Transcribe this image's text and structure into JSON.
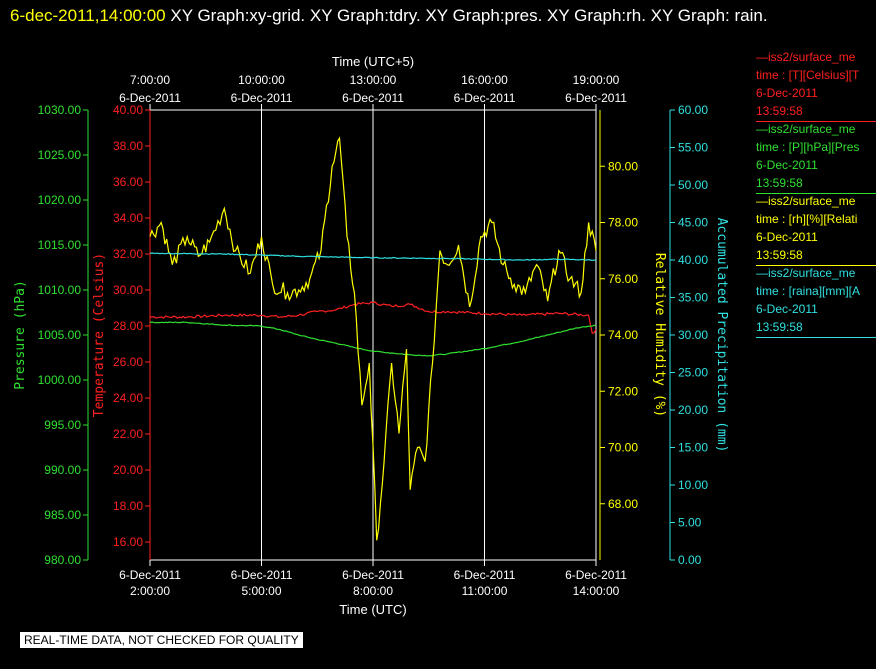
{
  "header": {
    "timestamp": "6-dec-2011,14:00:00",
    "title_rest": " XY Graph:xy-grid.  XY Graph:tdry.  XY Graph:pres.  XY Graph:rh.  XY Graph: rain."
  },
  "footer_note": "REAL-TIME DATA, NOT CHECKED FOR QUALITY",
  "legend": [
    {
      "line1": "—iss2/surface_me",
      "line2": "time : [T][Celsius][T",
      "line3": "6-Dec-2011",
      "line4": "13:59:58",
      "color": "#ff2020"
    },
    {
      "line1": "—iss2/surface_me",
      "line2": "time : [P][hPa][Pres",
      "line3": "6-Dec-2011",
      "line4": "13:59:58",
      "color": "#30e030"
    },
    {
      "line1": "—iss2/surface_me",
      "line2": "time : [rh][%][Relati",
      "line3": "6-Dec-2011",
      "line4": "13:59:58",
      "color": "#ffff00"
    },
    {
      "line1": "—iss2/surface_me",
      "line2": "time : [raina][mm][A",
      "line3": "6-Dec-2011",
      "line4": "13:59:58",
      "color": "#30e0e0"
    }
  ],
  "chart_data": {
    "type": "line",
    "x_bottom_label": "Time (UTC)",
    "x_top_label": "Time (UTC+5)",
    "x_range": [
      "2:00:00",
      "14:00:00"
    ],
    "x_bottom_ticks": [
      {
        "date": "6-Dec-2011",
        "time": "2:00:00"
      },
      {
        "date": "6-Dec-2011",
        "time": "5:00:00"
      },
      {
        "date": "6-Dec-2011",
        "time": "8:00:00"
      },
      {
        "date": "6-Dec-2011",
        "time": "11:00:00"
      },
      {
        "date": "6-Dec-2011",
        "time": "14:00:00"
      }
    ],
    "x_top_ticks": [
      {
        "date": "6-Dec-2011",
        "time": "7:00:00"
      },
      {
        "date": "6-Dec-2011",
        "time": "10:00:00"
      },
      {
        "date": "6-Dec-2011",
        "time": "13:00:00"
      },
      {
        "date": "6-Dec-2011",
        "time": "16:00:00"
      },
      {
        "date": "6-Dec-2011",
        "time": "19:00:00"
      }
    ],
    "axes": {
      "pressure": {
        "label": "Pressure (hPa)",
        "color": "#30e030",
        "range": [
          980,
          1030
        ],
        "ticks": [
          "1030.00",
          "1025.00",
          "1020.00",
          "1015.00",
          "1010.00",
          "1005.00",
          "1000.00",
          "995.00",
          "990.00",
          "985.00",
          "980.00"
        ]
      },
      "temperature": {
        "label": "Temperature (Celsius)",
        "color": "#ff2020",
        "range": [
          15,
          40
        ],
        "ticks": [
          "40.00",
          "38.00",
          "36.00",
          "34.00",
          "32.00",
          "30.00",
          "28.00",
          "26.00",
          "24.00",
          "22.00",
          "20.00",
          "18.00",
          "16.00"
        ]
      },
      "rh": {
        "label": "Relative Humidity (%)",
        "color": "#ffff00",
        "range": [
          66,
          82
        ],
        "ticks": [
          "80.00",
          "78.00",
          "76.00",
          "74.00",
          "72.00",
          "70.00",
          "68.00"
        ]
      },
      "precip": {
        "label": "Accumulated Precipitation (mm)",
        "color": "#30e0e0",
        "range": [
          0,
          60
        ],
        "ticks": [
          "60.00",
          "55.00",
          "50.00",
          "45.00",
          "40.00",
          "35.00",
          "30.00",
          "25.00",
          "20.00",
          "15.00",
          "10.00",
          "5.00",
          "0.00"
        ]
      }
    },
    "series": [
      {
        "name": "T (Celsius)",
        "axis": "temperature",
        "color": "#ff2020",
        "x": [
          2.0,
          3.0,
          4.0,
          5.0,
          5.5,
          6.0,
          6.5,
          7.0,
          7.5,
          8.0,
          8.5,
          9.0,
          9.5,
          10.0,
          11.0,
          12.0,
          13.0,
          13.8,
          13.9,
          14.0
        ],
        "y": [
          28.5,
          28.5,
          28.6,
          28.6,
          28.5,
          28.6,
          28.8,
          28.9,
          29.2,
          29.3,
          29.1,
          29.2,
          28.8,
          28.8,
          28.7,
          28.6,
          28.7,
          28.6,
          27.6,
          27.8
        ]
      },
      {
        "name": "P (hPa)",
        "axis": "pressure",
        "color": "#30e030",
        "x": [
          2.0,
          3.0,
          4.0,
          5.0,
          5.5,
          6.0,
          6.5,
          7.0,
          7.5,
          8.0,
          8.5,
          9.0,
          9.5,
          10.0,
          11.0,
          12.0,
          13.0,
          13.5,
          14.0
        ],
        "y": [
          1006.4,
          1006.4,
          1006.1,
          1006.0,
          1005.6,
          1005.0,
          1004.5,
          1004.1,
          1003.6,
          1003.2,
          1003.0,
          1002.8,
          1002.7,
          1002.9,
          1003.5,
          1004.3,
          1005.3,
          1005.8,
          1006.1
        ]
      },
      {
        "name": "rh (%)",
        "axis": "rh",
        "color": "#ffff00",
        "x": [
          2.0,
          2.3,
          2.6,
          3.0,
          3.3,
          3.6,
          4.0,
          4.3,
          4.7,
          5.0,
          5.3,
          5.7,
          6.0,
          6.3,
          6.6,
          6.9,
          7.1,
          7.3,
          7.5,
          7.7,
          7.9,
          8.1,
          8.3,
          8.5,
          8.7,
          8.9,
          9.0,
          9.2,
          9.4,
          9.6,
          9.8,
          10.0,
          10.3,
          10.6,
          10.9,
          11.2,
          11.5,
          11.8,
          12.1,
          12.4,
          12.7,
          13.0,
          13.3,
          13.6,
          13.8,
          14.0
        ],
        "y": [
          77.5,
          78.0,
          76.5,
          77.5,
          76.8,
          77.3,
          78.5,
          77.0,
          76.2,
          77.5,
          75.8,
          75.5,
          75.6,
          76.0,
          77.0,
          80.0,
          81.0,
          77.5,
          75.5,
          71.5,
          73.0,
          66.7,
          69.5,
          73.0,
          70.5,
          73.5,
          68.5,
          70.0,
          69.5,
          73.0,
          77.0,
          76.5,
          77.2,
          75.0,
          77.5,
          78.0,
          76.5,
          75.8,
          75.5,
          76.5,
          75.2,
          77.0,
          76.0,
          75.5,
          78.0,
          77.0
        ]
      },
      {
        "name": "raina (mm)",
        "axis": "precip",
        "color": "#30e0e0",
        "x": [
          2.0,
          4.0,
          6.0,
          8.0,
          10.0,
          12.0,
          13.0,
          14.0
        ],
        "y": [
          40.9,
          40.8,
          40.5,
          40.3,
          40.2,
          40.0,
          40.1,
          40.0
        ]
      }
    ]
  }
}
